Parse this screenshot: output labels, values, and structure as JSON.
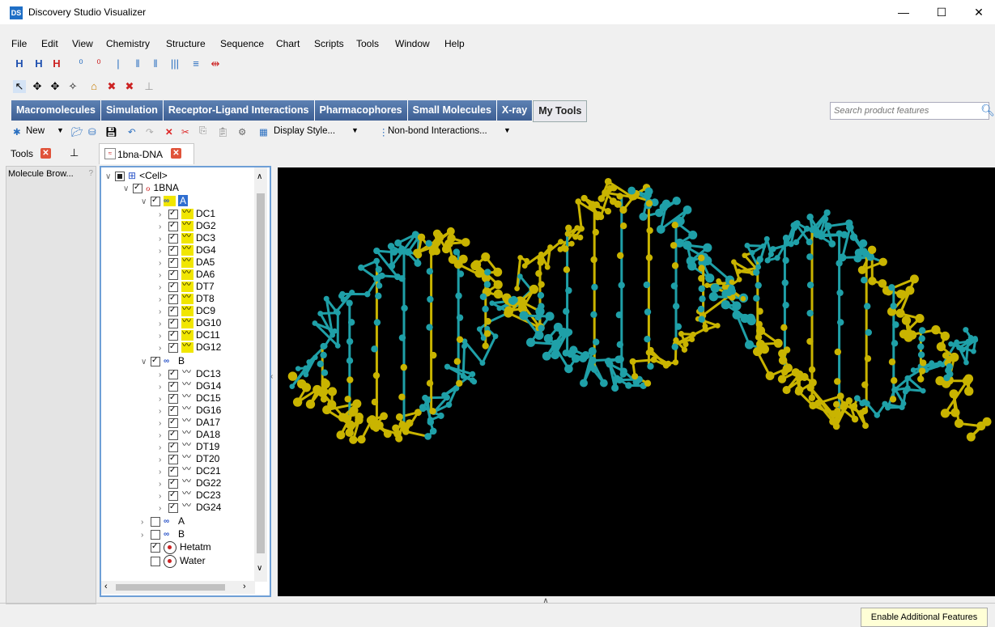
{
  "window": {
    "title": "Discovery Studio Visualizer",
    "app_icon": "DS"
  },
  "menu": [
    "File",
    "Edit",
    "View",
    "Chemistry",
    "Structure",
    "Sequence",
    "Chart",
    "Scripts",
    "Tools",
    "Window",
    "Help"
  ],
  "product_tabs": [
    "Macromolecules",
    "Simulation",
    "Receptor-Ligand Interactions",
    "Pharmacophores",
    "Small Molecules",
    "X-ray",
    "My Tools"
  ],
  "active_product_tab": "My Tools",
  "search": {
    "placeholder": "Search product features"
  },
  "toolbar": {
    "new_label": "New",
    "display_style_label": "Display Style...",
    "nonbond_label": "Non-bond Interactions..."
  },
  "panes": {
    "tools_tab": "Tools",
    "doc_tab": "1bna-DNA",
    "molecule_browser": "Molecule Brow..."
  },
  "tree": {
    "root": "<Cell>",
    "molecule": "1BNA",
    "chainA": "A",
    "chainA_residues": [
      "DC1",
      "DG2",
      "DC3",
      "DG4",
      "DA5",
      "DA6",
      "DT7",
      "DT8",
      "DC9",
      "DG10",
      "DC11",
      "DG12"
    ],
    "chainB": "B",
    "chainB_residues": [
      "DC13",
      "DG14",
      "DC15",
      "DG16",
      "DA17",
      "DA18",
      "DT19",
      "DT20",
      "DC21",
      "DG22",
      "DC23",
      "DG24"
    ],
    "extra_chain_a": "A",
    "extra_chain_b": "B",
    "hetatm": "Hetatm",
    "water": "Water"
  },
  "status": {
    "enable_features": "Enable Additional Features"
  },
  "colors": {
    "strand_a": "#c9b400",
    "strand_b": "#1fa0a8",
    "viewer_bg": "#000000",
    "tab_blue": "#4a6ea4"
  }
}
